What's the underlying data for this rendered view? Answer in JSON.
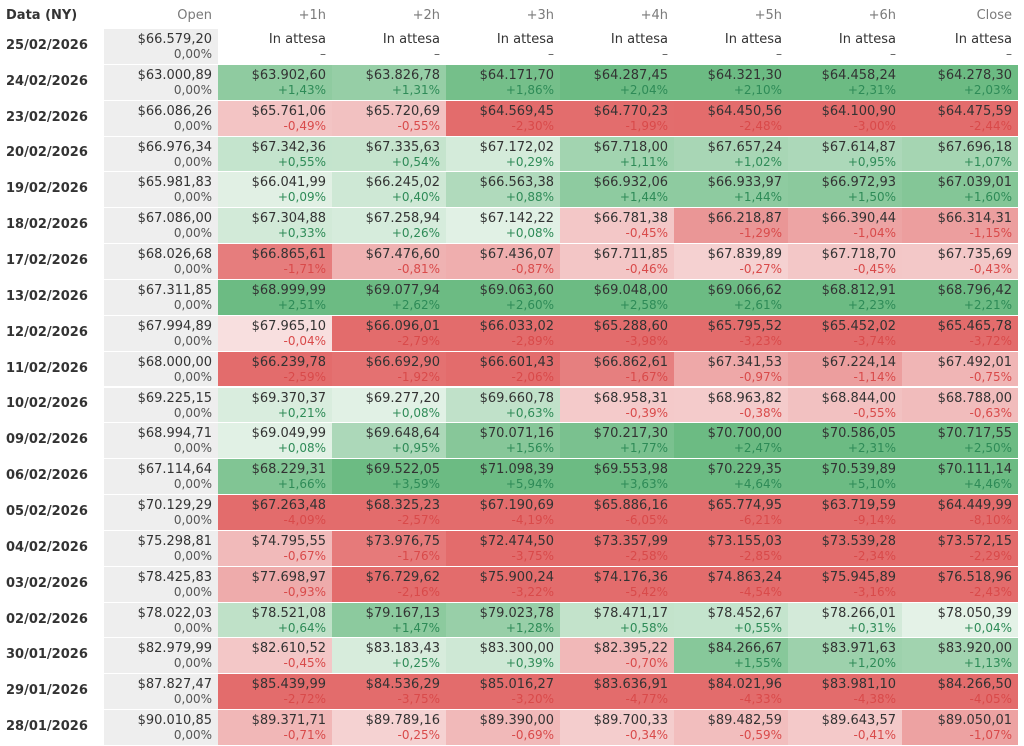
{
  "table": {
    "headers": [
      "Data (NY)",
      "Open",
      "+1h",
      "+2h",
      "+3h",
      "+4h",
      "+5h",
      "+6h",
      "Close"
    ],
    "rows": [
      {
        "date": "25/02/2026",
        "cells": [
          {
            "price": "$66.579,20",
            "pct": "0,00%"
          },
          {
            "price": "In attesa",
            "pct": "–"
          },
          {
            "price": "In attesa",
            "pct": "–"
          },
          {
            "price": "In attesa",
            "pct": "–"
          },
          {
            "price": "In attesa",
            "pct": "–"
          },
          {
            "price": "In attesa",
            "pct": "–"
          },
          {
            "price": "In attesa",
            "pct": "–"
          },
          {
            "price": "In attesa",
            "pct": "–"
          }
        ]
      },
      {
        "date": "24/02/2026",
        "cells": [
          {
            "price": "$63.000,89",
            "pct": "0,00%"
          },
          {
            "price": "$63.902,60",
            "pct": "+1,43%"
          },
          {
            "price": "$63.826,78",
            "pct": "+1,31%"
          },
          {
            "price": "$64.171,70",
            "pct": "+1,86%"
          },
          {
            "price": "$64.287,45",
            "pct": "+2,04%"
          },
          {
            "price": "$64.321,30",
            "pct": "+2,10%"
          },
          {
            "price": "$64.458,24",
            "pct": "+2,31%"
          },
          {
            "price": "$64.278,30",
            "pct": "+2,03%"
          }
        ]
      },
      {
        "date": "23/02/2026",
        "cells": [
          {
            "price": "$66.086,26",
            "pct": "0,00%"
          },
          {
            "price": "$65.761,06",
            "pct": "-0,49%"
          },
          {
            "price": "$65.720,69",
            "pct": "-0,55%"
          },
          {
            "price": "$64.569,45",
            "pct": "-2,30%"
          },
          {
            "price": "$64.770,23",
            "pct": "-1,99%"
          },
          {
            "price": "$64.450,56",
            "pct": "-2,48%"
          },
          {
            "price": "$64.100,90",
            "pct": "-3,00%"
          },
          {
            "price": "$64.475,59",
            "pct": "-2,44%"
          }
        ]
      },
      {
        "date": "20/02/2026",
        "cells": [
          {
            "price": "$66.976,34",
            "pct": "0,00%"
          },
          {
            "price": "$67.342,36",
            "pct": "+0,55%"
          },
          {
            "price": "$67.335,63",
            "pct": "+0,54%"
          },
          {
            "price": "$67.172,02",
            "pct": "+0,29%"
          },
          {
            "price": "$67.718,00",
            "pct": "+1,11%"
          },
          {
            "price": "$67.657,24",
            "pct": "+1,02%"
          },
          {
            "price": "$67.614,87",
            "pct": "+0,95%"
          },
          {
            "price": "$67.696,18",
            "pct": "+1,07%"
          }
        ]
      },
      {
        "date": "19/02/2026",
        "cells": [
          {
            "price": "$65.981,83",
            "pct": "0,00%"
          },
          {
            "price": "$66.041,99",
            "pct": "+0,09%"
          },
          {
            "price": "$66.245,02",
            "pct": "+0,40%"
          },
          {
            "price": "$66.563,38",
            "pct": "+0,88%"
          },
          {
            "price": "$66.932,06",
            "pct": "+1,44%"
          },
          {
            "price": "$66.933,97",
            "pct": "+1,44%"
          },
          {
            "price": "$66.972,93",
            "pct": "+1,50%"
          },
          {
            "price": "$67.039,01",
            "pct": "+1,60%"
          }
        ]
      },
      {
        "date": "18/02/2026",
        "cells": [
          {
            "price": "$67.086,00",
            "pct": "0,00%"
          },
          {
            "price": "$67.304,88",
            "pct": "+0,33%"
          },
          {
            "price": "$67.258,94",
            "pct": "+0,26%"
          },
          {
            "price": "$67.142,22",
            "pct": "+0,08%"
          },
          {
            "price": "$66.781,38",
            "pct": "-0,45%"
          },
          {
            "price": "$66.218,87",
            "pct": "-1,29%"
          },
          {
            "price": "$66.390,44",
            "pct": "-1,04%"
          },
          {
            "price": "$66.314,31",
            "pct": "-1,15%"
          }
        ]
      },
      {
        "date": "17/02/2026",
        "cells": [
          {
            "price": "$68.026,68",
            "pct": "0,00%"
          },
          {
            "price": "$66.865,61",
            "pct": "-1,71%"
          },
          {
            "price": "$67.476,60",
            "pct": "-0,81%"
          },
          {
            "price": "$67.436,07",
            "pct": "-0,87%"
          },
          {
            "price": "$67.711,85",
            "pct": "-0,46%"
          },
          {
            "price": "$67.839,89",
            "pct": "-0,27%"
          },
          {
            "price": "$67.718,70",
            "pct": "-0,45%"
          },
          {
            "price": "$67.735,69",
            "pct": "-0,43%"
          }
        ]
      },
      {
        "date": "13/02/2026",
        "cells": [
          {
            "price": "$67.311,85",
            "pct": "0,00%"
          },
          {
            "price": "$68.999,99",
            "pct": "+2,51%"
          },
          {
            "price": "$69.077,94",
            "pct": "+2,62%"
          },
          {
            "price": "$69.063,60",
            "pct": "+2,60%"
          },
          {
            "price": "$69.048,00",
            "pct": "+2,58%"
          },
          {
            "price": "$69.066,62",
            "pct": "+2,61%"
          },
          {
            "price": "$68.812,91",
            "pct": "+2,23%"
          },
          {
            "price": "$68.796,42",
            "pct": "+2,21%"
          }
        ]
      },
      {
        "date": "12/02/2026",
        "cells": [
          {
            "price": "$67.994,89",
            "pct": "0,00%"
          },
          {
            "price": "$67.965,10",
            "pct": "-0,04%"
          },
          {
            "price": "$66.096,01",
            "pct": "-2,79%"
          },
          {
            "price": "$66.033,02",
            "pct": "-2,89%"
          },
          {
            "price": "$65.288,60",
            "pct": "-3,98%"
          },
          {
            "price": "$65.795,52",
            "pct": "-3,23%"
          },
          {
            "price": "$65.452,02",
            "pct": "-3,74%"
          },
          {
            "price": "$65.465,78",
            "pct": "-3,72%"
          }
        ]
      },
      {
        "date": "11/02/2026",
        "cells": [
          {
            "price": "$68.000,00",
            "pct": "0,00%"
          },
          {
            "price": "$66.239,78",
            "pct": "-2,59%"
          },
          {
            "price": "$66.692,90",
            "pct": "-1,92%"
          },
          {
            "price": "$66.601,43",
            "pct": "-2,06%"
          },
          {
            "price": "$66.862,61",
            "pct": "-1,67%"
          },
          {
            "price": "$67.341,53",
            "pct": "-0,97%"
          },
          {
            "price": "$67.224,14",
            "pct": "-1,14%"
          },
          {
            "price": "$67.492,01",
            "pct": "-0,75%"
          }
        ]
      },
      {
        "date": "10/02/2026",
        "cells": [
          {
            "price": "$69.225,15",
            "pct": "0,00%"
          },
          {
            "price": "$69.370,37",
            "pct": "+0,21%"
          },
          {
            "price": "$69.277,20",
            "pct": "+0,08%"
          },
          {
            "price": "$69.660,78",
            "pct": "+0,63%"
          },
          {
            "price": "$68.958,31",
            "pct": "-0,39%"
          },
          {
            "price": "$68.963,82",
            "pct": "-0,38%"
          },
          {
            "price": "$68.844,00",
            "pct": "-0,55%"
          },
          {
            "price": "$68.788,00",
            "pct": "-0,63%"
          }
        ]
      },
      {
        "date": "09/02/2026",
        "cells": [
          {
            "price": "$68.994,71",
            "pct": "0,00%"
          },
          {
            "price": "$69.049,99",
            "pct": "+0,08%"
          },
          {
            "price": "$69.648,64",
            "pct": "+0,95%"
          },
          {
            "price": "$70.071,16",
            "pct": "+1,56%"
          },
          {
            "price": "$70.217,30",
            "pct": "+1,77%"
          },
          {
            "price": "$70.700,00",
            "pct": "+2,47%"
          },
          {
            "price": "$70.586,05",
            "pct": "+2,31%"
          },
          {
            "price": "$70.717,55",
            "pct": "+2,50%"
          }
        ]
      },
      {
        "date": "06/02/2026",
        "cells": [
          {
            "price": "$67.114,64",
            "pct": "0,00%"
          },
          {
            "price": "$68.229,31",
            "pct": "+1,66%"
          },
          {
            "price": "$69.522,05",
            "pct": "+3,59%"
          },
          {
            "price": "$71.098,39",
            "pct": "+5,94%"
          },
          {
            "price": "$69.553,98",
            "pct": "+3,63%"
          },
          {
            "price": "$70.229,35",
            "pct": "+4,64%"
          },
          {
            "price": "$70.539,89",
            "pct": "+5,10%"
          },
          {
            "price": "$70.111,14",
            "pct": "+4,46%"
          }
        ]
      },
      {
        "date": "05/02/2026",
        "cells": [
          {
            "price": "$70.129,29",
            "pct": "0,00%"
          },
          {
            "price": "$67.263,48",
            "pct": "-4,09%"
          },
          {
            "price": "$68.325,23",
            "pct": "-2,57%"
          },
          {
            "price": "$67.190,69",
            "pct": "-4,19%"
          },
          {
            "price": "$65.886,16",
            "pct": "-6,05%"
          },
          {
            "price": "$65.774,95",
            "pct": "-6,21%"
          },
          {
            "price": "$63.719,59",
            "pct": "-9,14%"
          },
          {
            "price": "$64.449,99",
            "pct": "-8,10%"
          }
        ]
      },
      {
        "date": "04/02/2026",
        "cells": [
          {
            "price": "$75.298,81",
            "pct": "0,00%"
          },
          {
            "price": "$74.795,55",
            "pct": "-0,67%"
          },
          {
            "price": "$73.976,75",
            "pct": "-1,76%"
          },
          {
            "price": "$72.474,50",
            "pct": "-3,75%"
          },
          {
            "price": "$73.357,99",
            "pct": "-2,58%"
          },
          {
            "price": "$73.155,03",
            "pct": "-2,85%"
          },
          {
            "price": "$73.539,28",
            "pct": "-2,34%"
          },
          {
            "price": "$73.572,15",
            "pct": "-2,29%"
          }
        ]
      },
      {
        "date": "03/02/2026",
        "cells": [
          {
            "price": "$78.425,83",
            "pct": "0,00%"
          },
          {
            "price": "$77.698,97",
            "pct": "-0,93%"
          },
          {
            "price": "$76.729,62",
            "pct": "-2,16%"
          },
          {
            "price": "$75.900,24",
            "pct": "-3,22%"
          },
          {
            "price": "$74.176,36",
            "pct": "-5,42%"
          },
          {
            "price": "$74.863,24",
            "pct": "-4,54%"
          },
          {
            "price": "$75.945,89",
            "pct": "-3,16%"
          },
          {
            "price": "$76.518,96",
            "pct": "-2,43%"
          }
        ]
      },
      {
        "date": "02/02/2026",
        "cells": [
          {
            "price": "$78.022,03",
            "pct": "0,00%"
          },
          {
            "price": "$78.521,08",
            "pct": "+0,64%"
          },
          {
            "price": "$79.167,13",
            "pct": "+1,47%"
          },
          {
            "price": "$79.023,78",
            "pct": "+1,28%"
          },
          {
            "price": "$78.471,17",
            "pct": "+0,58%"
          },
          {
            "price": "$78.452,67",
            "pct": "+0,55%"
          },
          {
            "price": "$78.266,01",
            "pct": "+0,31%"
          },
          {
            "price": "$78.050,39",
            "pct": "+0,04%"
          }
        ]
      },
      {
        "date": "30/01/2026",
        "cells": [
          {
            "price": "$82.979,99",
            "pct": "0,00%"
          },
          {
            "price": "$82.610,52",
            "pct": "-0,45%"
          },
          {
            "price": "$83.183,43",
            "pct": "+0,25%"
          },
          {
            "price": "$83.300,00",
            "pct": "+0,39%"
          },
          {
            "price": "$82.395,22",
            "pct": "-0,70%"
          },
          {
            "price": "$84.266,67",
            "pct": "+1,55%"
          },
          {
            "price": "$83.971,63",
            "pct": "+1,20%"
          },
          {
            "price": "$83.920,00",
            "pct": "+1,13%"
          }
        ]
      },
      {
        "date": "29/01/2026",
        "cells": [
          {
            "price": "$87.827,47",
            "pct": "0,00%"
          },
          {
            "price": "$85.439,99",
            "pct": "-2,72%"
          },
          {
            "price": "$84.536,29",
            "pct": "-3,75%"
          },
          {
            "price": "$85.016,27",
            "pct": "-3,20%"
          },
          {
            "price": "$83.636,91",
            "pct": "-4,77%"
          },
          {
            "price": "$84.021,96",
            "pct": "-4,33%"
          },
          {
            "price": "$83.981,10",
            "pct": "-4,38%"
          },
          {
            "price": "$84.266,50",
            "pct": "-4,05%"
          }
        ]
      },
      {
        "date": "28/01/2026",
        "cells": [
          {
            "price": "$90.010,85",
            "pct": "0,00%"
          },
          {
            "price": "$89.371,71",
            "pct": "-0,71%"
          },
          {
            "price": "$89.789,16",
            "pct": "-0,25%"
          },
          {
            "price": "$89.390,00",
            "pct": "-0,69%"
          },
          {
            "price": "$89.700,33",
            "pct": "-0,34%"
          },
          {
            "price": "$89.482,59",
            "pct": "-0,59%"
          },
          {
            "price": "$89.643,57",
            "pct": "-0,41%"
          },
          {
            "price": "$89.050,01",
            "pct": "-1,07%"
          }
        ]
      }
    ]
  },
  "colors": {
    "pos_strong": "#6cbb83",
    "pos_light": "#e6f3e9",
    "neg_strong": "#e36c6c",
    "neg_light": "#f8e1e1",
    "open_bg": "#eeeeee",
    "pos_text": "#2e8b57",
    "neg_text": "#d94a4a"
  }
}
